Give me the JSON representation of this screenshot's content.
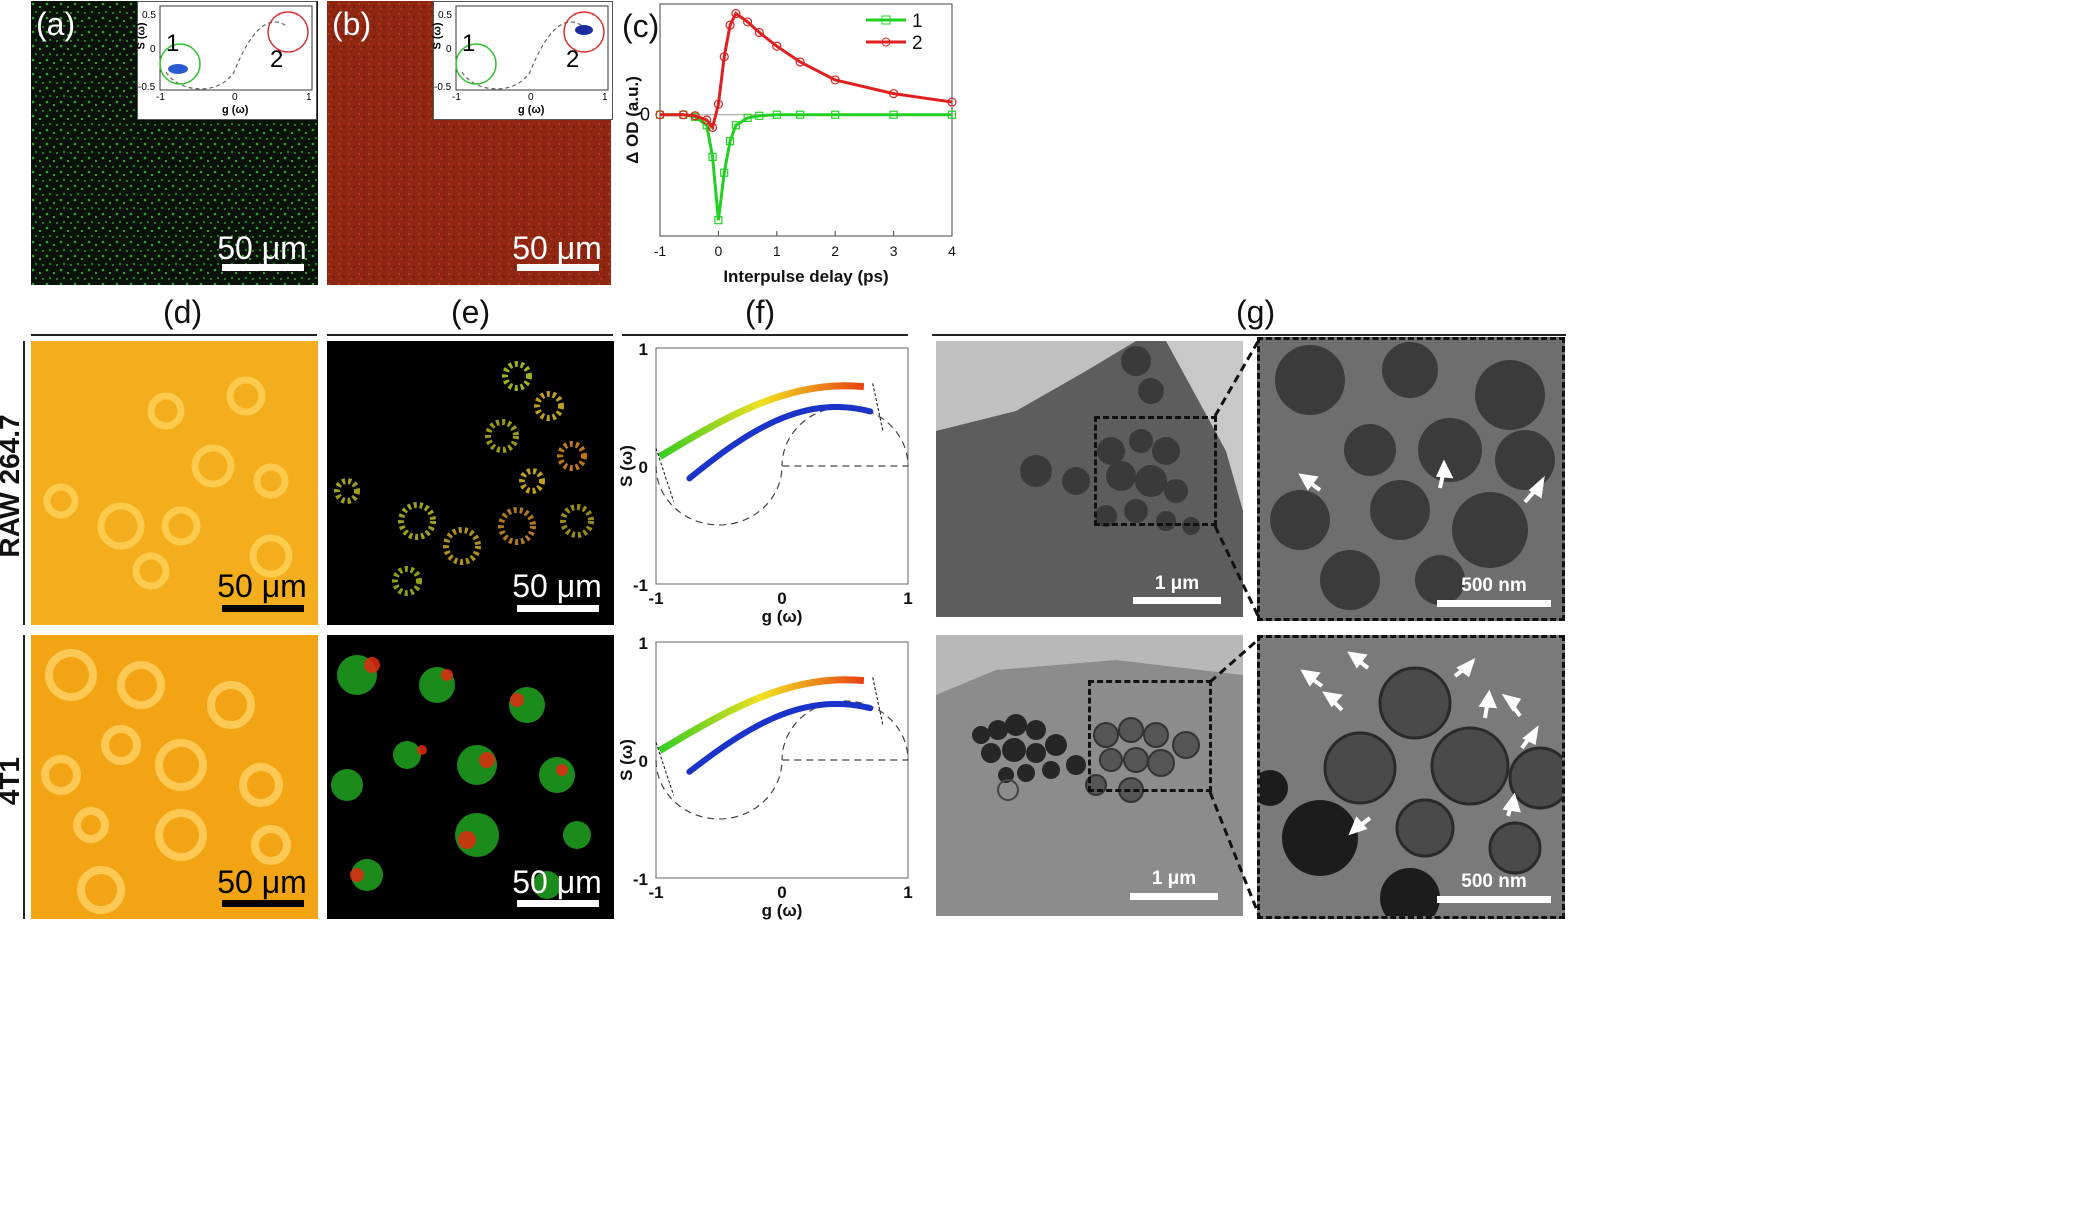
{
  "labels": {
    "a": "(a)",
    "b": "(b)",
    "c": "(c)",
    "d": "(d)",
    "e": "(e)",
    "f": "(f)",
    "g": "(g)"
  },
  "rows": {
    "row1": "RAW 264.7",
    "row2": "4T1"
  },
  "scalebars": {
    "um50": "50 μm",
    "um1": "1 μm",
    "nm500": "500 nm"
  },
  "colors": {
    "green": "#22d022",
    "red": "#e02020",
    "fluorescence_green": "#1a7a1a",
    "orange": "#f5a623",
    "dark_red": "#8a1a0e"
  },
  "insets": {
    "a": {
      "region1": "1",
      "region2": "2",
      "ylabel": "S (ω)",
      "xlabel": "g (ω)",
      "yticks": [
        "0.5",
        "0",
        "-0.5"
      ],
      "xticks": [
        "-1",
        "0",
        "1"
      ]
    },
    "b": {
      "region1": "1",
      "region2": "2",
      "ylabel": "S (ω)",
      "xlabel": "g (ω)",
      "yticks": [
        "0.5",
        "0",
        "-0.5"
      ],
      "xticks": [
        "-1",
        "0",
        "1"
      ]
    }
  },
  "chart_data": [
    {
      "type": "line",
      "panel": "(c)",
      "xlabel": "Interpulse delay (ps)",
      "ylabel": "Δ OD (a.u.)",
      "xlim": [
        -1,
        4
      ],
      "xticks": [
        "-1",
        "0",
        "1",
        "2",
        "3",
        "4"
      ],
      "yticks": [
        "0"
      ],
      "legend_position": "top-right",
      "series": [
        {
          "name": "1",
          "color": "#22d022",
          "marker": "square",
          "x": [
            -1,
            -0.6,
            -0.4,
            -0.2,
            -0.1,
            0,
            0.1,
            0.2,
            0.3,
            0.5,
            0.7,
            1,
            1.4,
            2,
            3,
            4
          ],
          "y": [
            0,
            0,
            -0.02,
            -0.1,
            -0.4,
            -1.0,
            -0.55,
            -0.25,
            -0.1,
            -0.03,
            -0.01,
            0,
            0,
            0,
            0,
            0
          ]
        },
        {
          "name": "2",
          "color": "#e02020",
          "marker": "circle",
          "x": [
            -1,
            -0.6,
            -0.4,
            -0.2,
            -0.1,
            0,
            0.1,
            0.2,
            0.3,
            0.5,
            0.7,
            1,
            1.4,
            2,
            3,
            4
          ],
          "y": [
            0,
            0,
            -0.01,
            -0.05,
            -0.12,
            0.1,
            0.55,
            0.85,
            0.96,
            0.88,
            0.78,
            0.65,
            0.5,
            0.33,
            0.2,
            0.12
          ]
        }
      ]
    },
    {
      "type": "scatter",
      "panel": "(f) RAW 264.7",
      "xlabel": "g (ω)",
      "ylabel": "S (ω)",
      "xlim": [
        -1,
        1
      ],
      "ylim": [
        -1,
        1
      ],
      "xticks": [
        "-1",
        "0",
        "1"
      ],
      "yticks": [
        "1",
        "0",
        "-1"
      ]
    },
    {
      "type": "scatter",
      "panel": "(f) 4T1",
      "xlabel": "g (ω)",
      "ylabel": "S (ω)",
      "xlim": [
        -1,
        1
      ],
      "ylim": [
        -1,
        1
      ],
      "xticks": [
        "-1",
        "0",
        "1"
      ],
      "yticks": [
        "1",
        "0",
        "-1"
      ]
    }
  ]
}
